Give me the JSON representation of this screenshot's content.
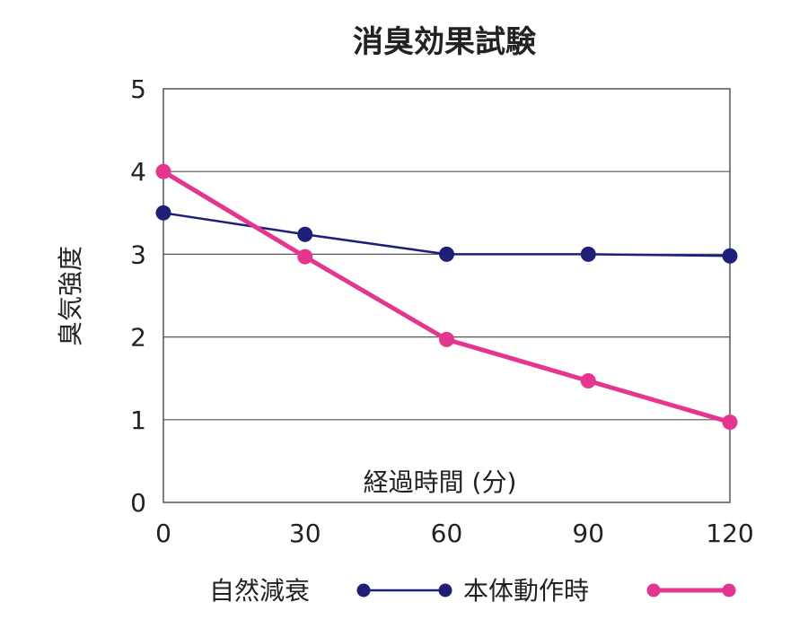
{
  "chart_data": {
    "type": "line",
    "title": "消臭効果試験",
    "xlabel": "経過時間 (分)",
    "ylabel": "臭気強度",
    "x": [
      0,
      30,
      60,
      90,
      120
    ],
    "x_tick_labels": [
      "0",
      "30",
      "60",
      "90",
      "120"
    ],
    "y_tick_labels": [
      "0",
      "1",
      "2",
      "3",
      "4",
      "5"
    ],
    "xlim": [
      0,
      120
    ],
    "ylim": [
      0,
      5
    ],
    "grid": "horizontal",
    "legend_position": "bottom",
    "series": [
      {
        "name": "自然減衰",
        "values": [
          3.5,
          3.24,
          3.0,
          3.0,
          2.98
        ],
        "color": "#1f1f7a"
      },
      {
        "name": "本体動作時",
        "values": [
          4.0,
          2.97,
          1.97,
          1.47,
          0.97
        ],
        "color": "#e6358e"
      }
    ]
  }
}
